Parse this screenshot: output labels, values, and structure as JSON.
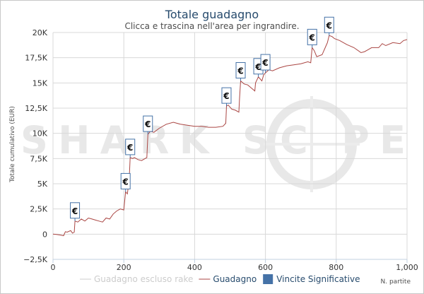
{
  "chart_data": {
    "type": "line",
    "title": "Totale guadagno",
    "subtitle": "Clicca e trascina nell'area per ingrandire.",
    "xlabel": "N. partite",
    "ylabel": "Totale cumulativo (EUR)",
    "xlim": [
      0,
      1000
    ],
    "ylim": [
      -2500,
      20000
    ],
    "x_ticks": [
      {
        "value": 0,
        "label": "0"
      },
      {
        "value": 200,
        "label": "200"
      },
      {
        "value": 400,
        "label": "400"
      },
      {
        "value": 600,
        "label": "600"
      },
      {
        "value": 800,
        "label": "800"
      },
      {
        "value": 1000,
        "label": "1,000"
      }
    ],
    "y_ticks": [
      {
        "value": -2500,
        "label": "−2,5K"
      },
      {
        "value": 0,
        "label": "0"
      },
      {
        "value": 2500,
        "label": "2,5K"
      },
      {
        "value": 5000,
        "label": "5K"
      },
      {
        "value": 7500,
        "label": "7,5K"
      },
      {
        "value": 10000,
        "label": "10K"
      },
      {
        "value": 12500,
        "label": "12,5K"
      },
      {
        "value": 15000,
        "label": "15K"
      },
      {
        "value": 17500,
        "label": "17,5K"
      },
      {
        "value": 20000,
        "label": "20K"
      }
    ],
    "grid": true,
    "legend_position": "bottom",
    "series": [
      {
        "name": "Guadagno",
        "color": "#aa4643",
        "points": [
          [
            0,
            0
          ],
          [
            10,
            -30
          ],
          [
            20,
            -80
          ],
          [
            30,
            -150
          ],
          [
            35,
            250
          ],
          [
            40,
            200
          ],
          [
            50,
            350
          ],
          [
            55,
            100
          ],
          [
            60,
            200
          ],
          [
            62,
            1300
          ],
          [
            70,
            1200
          ],
          [
            80,
            1500
          ],
          [
            90,
            1300
          ],
          [
            100,
            1600
          ],
          [
            110,
            1500
          ],
          [
            120,
            1400
          ],
          [
            130,
            1300
          ],
          [
            140,
            1200
          ],
          [
            150,
            1600
          ],
          [
            160,
            1500
          ],
          [
            170,
            2000
          ],
          [
            180,
            2300
          ],
          [
            190,
            2500
          ],
          [
            200,
            2400
          ],
          [
            205,
            4200
          ],
          [
            210,
            4000
          ],
          [
            212,
            4500
          ],
          [
            215,
            5200
          ],
          [
            218,
            7600
          ],
          [
            225,
            7500
          ],
          [
            230,
            7600
          ],
          [
            240,
            7400
          ],
          [
            250,
            7300
          ],
          [
            265,
            7600
          ],
          [
            268,
            9900
          ],
          [
            275,
            10200
          ],
          [
            285,
            10100
          ],
          [
            300,
            10500
          ],
          [
            320,
            10900
          ],
          [
            340,
            11100
          ],
          [
            360,
            10900
          ],
          [
            380,
            10800
          ],
          [
            400,
            10700
          ],
          [
            420,
            10700
          ],
          [
            440,
            10600
          ],
          [
            460,
            10600
          ],
          [
            480,
            10700
          ],
          [
            488,
            11000
          ],
          [
            490,
            12700
          ],
          [
            495,
            12800
          ],
          [
            505,
            12400
          ],
          [
            515,
            12300
          ],
          [
            525,
            12100
          ],
          [
            527,
            13500
          ],
          [
            530,
            15200
          ],
          [
            540,
            14900
          ],
          [
            550,
            14800
          ],
          [
            560,
            14500
          ],
          [
            570,
            14200
          ],
          [
            572,
            15000
          ],
          [
            580,
            15600
          ],
          [
            590,
            15200
          ],
          [
            595,
            15800
          ],
          [
            600,
            16000
          ],
          [
            610,
            16300
          ],
          [
            620,
            16200
          ],
          [
            640,
            16500
          ],
          [
            660,
            16700
          ],
          [
            680,
            16800
          ],
          [
            700,
            16900
          ],
          [
            720,
            17100
          ],
          [
            728,
            17000
          ],
          [
            732,
            18500
          ],
          [
            738,
            18200
          ],
          [
            745,
            17600
          ],
          [
            760,
            17800
          ],
          [
            770,
            18600
          ],
          [
            775,
            19000
          ],
          [
            780,
            19700
          ],
          [
            788,
            19600
          ],
          [
            795,
            19400
          ],
          [
            810,
            19200
          ],
          [
            830,
            18800
          ],
          [
            850,
            18500
          ],
          [
            870,
            18000
          ],
          [
            880,
            18100
          ],
          [
            890,
            18300
          ],
          [
            900,
            18500
          ],
          [
            920,
            18500
          ],
          [
            930,
            18900
          ],
          [
            940,
            18700
          ],
          [
            960,
            19000
          ],
          [
            980,
            18900
          ],
          [
            990,
            19200
          ],
          [
            1000,
            19300
          ]
        ]
      }
    ],
    "markers": [
      {
        "x": 62,
        "y": 1300
      },
      {
        "x": 205,
        "y": 4200
      },
      {
        "x": 218,
        "y": 7600
      },
      {
        "x": 268,
        "y": 9900
      },
      {
        "x": 490,
        "y": 12700
      },
      {
        "x": 530,
        "y": 15200
      },
      {
        "x": 580,
        "y": 15600
      },
      {
        "x": 600,
        "y": 16000
      },
      {
        "x": 732,
        "y": 18500
      },
      {
        "x": 780,
        "y": 19700
      }
    ],
    "marker_symbol": "€",
    "legend": [
      {
        "label": "Guadagno escluso rake",
        "kind": "line",
        "color": "#cccccc",
        "text_color": "#cccccc"
      },
      {
        "label": "Guadagno",
        "kind": "line",
        "color": "#aa4643",
        "text_color": "#274b6d"
      },
      {
        "label": "Vincite Significative",
        "kind": "box",
        "color": "#4572a7",
        "text_color": "#274b6d"
      }
    ],
    "watermark": "SHARK SC PE"
  }
}
